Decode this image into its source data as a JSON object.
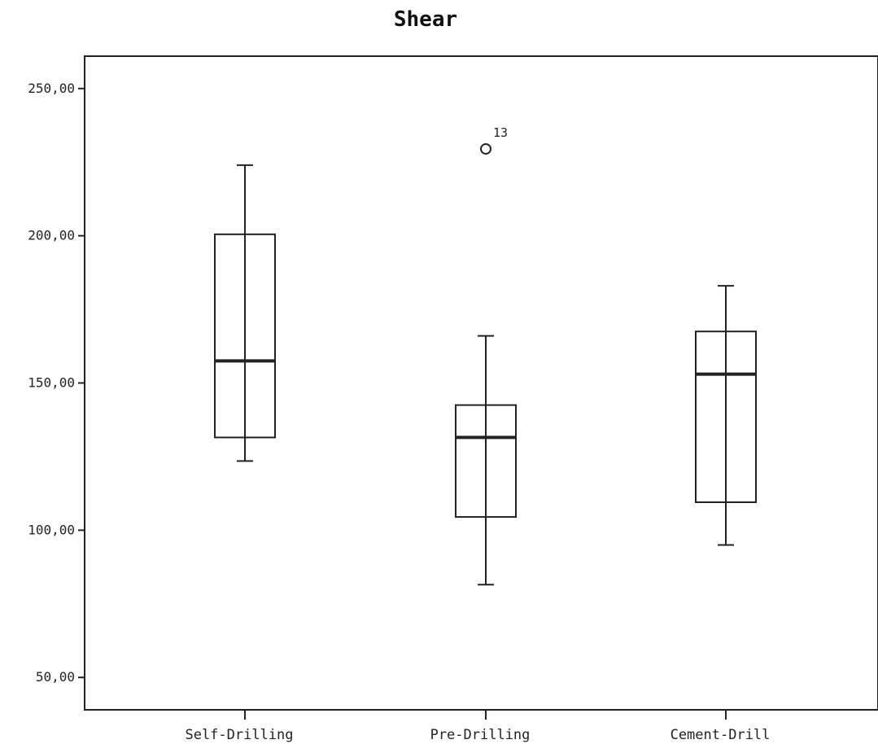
{
  "chart_data": {
    "type": "boxplot",
    "title": "Shear",
    "xlabel": "",
    "ylabel": "",
    "ylim": [
      39,
      261
    ],
    "yticks": [
      50,
      100,
      150,
      200,
      250
    ],
    "ytick_labels": [
      "50,00",
      "100,00",
      "150,00",
      "200,00",
      "250,00"
    ],
    "grid": false,
    "categories": [
      "Self-Drilling",
      "Pre-Drilling",
      "Cement-Drill"
    ],
    "boxes": [
      {
        "category": "Self-Drilling",
        "whisker_low": 123.5,
        "q1": 131.5,
        "median": 157.5,
        "q3": 200.5,
        "whisker_high": 224,
        "outliers": []
      },
      {
        "category": "Pre-Drilling",
        "whisker_low": 81.5,
        "q1": 104.5,
        "median": 131.5,
        "q3": 142.5,
        "whisker_high": 166,
        "outliers": [
          {
            "value": 229.5,
            "label": "13"
          }
        ]
      },
      {
        "category": "Cement-Drill",
        "whisker_low": 95,
        "q1": 109.5,
        "median": 153,
        "q3": 167.5,
        "whisker_high": 183,
        "outliers": []
      }
    ]
  }
}
